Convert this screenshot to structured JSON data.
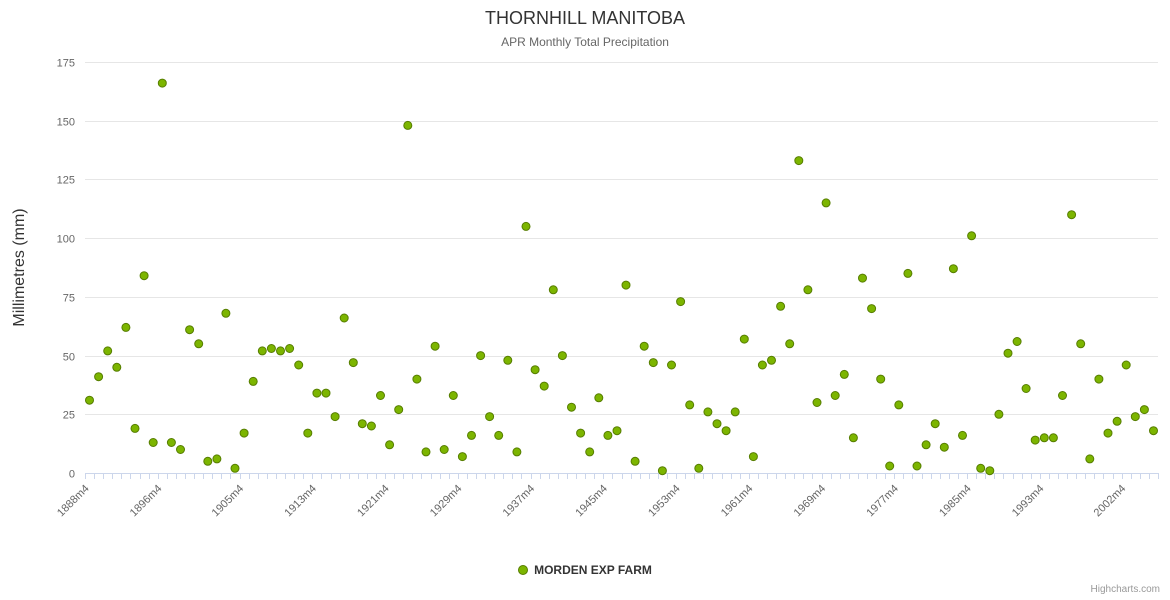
{
  "credits": "Highcharts.com",
  "chart_data": {
    "type": "scatter",
    "title": "THORNHILL MANITOBA",
    "subtitle": "APR Monthly Total Precipitation",
    "xlabel": "",
    "ylabel": "Millimetres (mm)",
    "ylim": [
      0,
      175
    ],
    "ytick_interval": 25,
    "grid": "horizontal",
    "legend_position": "bottom-center",
    "marker_fill": "#7cb500",
    "marker_stroke": "#567d00",
    "gridline_color": "#e6e6e6",
    "axis_color": "#ccd6eb",
    "xtick_labels": [
      "1888m4",
      "1896m4",
      "1905m4",
      "1913m4",
      "1921m4",
      "1929m4",
      "1937m4",
      "1945m4",
      "1953m4",
      "1961m4",
      "1969m4",
      "1977m4",
      "1985m4",
      "1993m4",
      "2002m4"
    ],
    "series": [
      {
        "name": "MORDEN EXP FARM",
        "color": "#7cb500",
        "points": [
          [
            "1888m4",
            31
          ],
          [
            "1889m4",
            41
          ],
          [
            "1890m4",
            52
          ],
          [
            "1891m4",
            45
          ],
          [
            "1892m4",
            62
          ],
          [
            "1893m4",
            19
          ],
          [
            "1894m4",
            84
          ],
          [
            "1895m4",
            13
          ],
          [
            "1896m4",
            166
          ],
          [
            "1897m4",
            13
          ],
          [
            "1898m4",
            10
          ],
          [
            "1899m4",
            61
          ],
          [
            "1900m4",
            55
          ],
          [
            "1901m4",
            5
          ],
          [
            "1902m4",
            6
          ],
          [
            "1903m4",
            68
          ],
          [
            "1904m4",
            2
          ],
          [
            "1905m4",
            17
          ],
          [
            "1906m4",
            39
          ],
          [
            "1907m4",
            52
          ],
          [
            "1908m4",
            53
          ],
          [
            "1909m4",
            52
          ],
          [
            "1910m4",
            53
          ],
          [
            "1911m4",
            46
          ],
          [
            "1912m4",
            17
          ],
          [
            "1913m4",
            34
          ],
          [
            "1914m4",
            34
          ],
          [
            "1915m4",
            24
          ],
          [
            "1916m4",
            66
          ],
          [
            "1917m4",
            47
          ],
          [
            "1918m4",
            21
          ],
          [
            "1919m4",
            20
          ],
          [
            "1920m4",
            33
          ],
          [
            "1921m4",
            12
          ],
          [
            "1922m4",
            27
          ],
          [
            "1923m4",
            148
          ],
          [
            "1924m4",
            40
          ],
          [
            "1925m4",
            9
          ],
          [
            "1926m4",
            54
          ],
          [
            "1927m4",
            10
          ],
          [
            "1928m4",
            33
          ],
          [
            "1929m4",
            7
          ],
          [
            "1930m4",
            16
          ],
          [
            "1931m4",
            50
          ],
          [
            "1932m4",
            24
          ],
          [
            "1933m4",
            16
          ],
          [
            "1934m4",
            48
          ],
          [
            "1935m4",
            9
          ],
          [
            "1936m4",
            105
          ],
          [
            "1937m4",
            44
          ],
          [
            "1938m4",
            37
          ],
          [
            "1939m4",
            78
          ],
          [
            "1940m4",
            50
          ],
          [
            "1941m4",
            28
          ],
          [
            "1942m4",
            17
          ],
          [
            "1943m4",
            9
          ],
          [
            "1944m4",
            32
          ],
          [
            "1945m4",
            16
          ],
          [
            "1946m4",
            18
          ],
          [
            "1947m4",
            80
          ],
          [
            "1948m4",
            5
          ],
          [
            "1949m4",
            54
          ],
          [
            "1950m4",
            47
          ],
          [
            "1951m4",
            1
          ],
          [
            "1952m4",
            46
          ],
          [
            "1953m4",
            73
          ],
          [
            "1954m4",
            29
          ],
          [
            "1955m4",
            2
          ],
          [
            "1956m4",
            26
          ],
          [
            "1957m4",
            21
          ],
          [
            "1958m4",
            18
          ],
          [
            "1959m4",
            26
          ],
          [
            "1960m4",
            57
          ],
          [
            "1961m4",
            7
          ],
          [
            "1962m4",
            46
          ],
          [
            "1963m4",
            48
          ],
          [
            "1964m4",
            71
          ],
          [
            "1965m4",
            55
          ],
          [
            "1966m4",
            133
          ],
          [
            "1967m4",
            78
          ],
          [
            "1968m4",
            30
          ],
          [
            "1969m4",
            115
          ],
          [
            "1970m4",
            33
          ],
          [
            "1971m4",
            42
          ],
          [
            "1972m4",
            15
          ],
          [
            "1973m4",
            83
          ],
          [
            "1974m4",
            70
          ],
          [
            "1975m4",
            40
          ],
          [
            "1976m4",
            3
          ],
          [
            "1977m4",
            29
          ],
          [
            "1978m4",
            85
          ],
          [
            "1979m4",
            3
          ],
          [
            "1980m4",
            12
          ],
          [
            "1981m4",
            21
          ],
          [
            "1982m4",
            11
          ],
          [
            "1983m4",
            87
          ],
          [
            "1984m4",
            16
          ],
          [
            "1985m4",
            101
          ],
          [
            "1986m4",
            2
          ],
          [
            "1987m4",
            1
          ],
          [
            "1988m4",
            25
          ],
          [
            "1989m4",
            51
          ],
          [
            "1990m4",
            56
          ],
          [
            "1991m4",
            36
          ],
          [
            "1992m4",
            14
          ],
          [
            "1993m4",
            15
          ],
          [
            "1994m4",
            15
          ],
          [
            "1995m4",
            33
          ],
          [
            "1996m4",
            110
          ],
          [
            "1997m4",
            55
          ],
          [
            "1998m4",
            6
          ],
          [
            "1999m4",
            40
          ],
          [
            "2000m4",
            17
          ],
          [
            "2001m4",
            22
          ],
          [
            "2002m4",
            46
          ],
          [
            "2003m4",
            24
          ],
          [
            "2004m4",
            27
          ],
          [
            "2005m4",
            18
          ]
        ]
      }
    ]
  }
}
